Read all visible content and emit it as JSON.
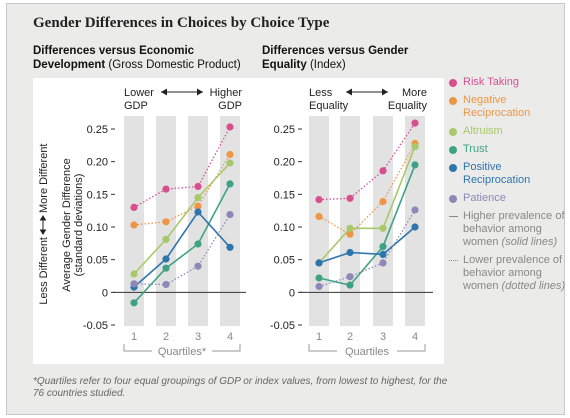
{
  "title": "Gender Differences in Choices by Choice Type",
  "chart_data": [
    {
      "type": "line",
      "title_bold": "Differences versus Economic Development",
      "title_rest": "(Gross Domestic Product)",
      "title_lines": [
        "Differences versus Economic",
        "Development"
      ],
      "top_left_label": [
        "Lower",
        "GDP"
      ],
      "top_right_label": [
        "Higher",
        "GDP"
      ],
      "x_title": "Quartiles*",
      "ylabel": "Average Gender Difference",
      "ylabel_sub": "(standard deviations)",
      "side_label": "Less Different ⟷ More Different",
      "side_low": "Less Different",
      "side_high": "More Different",
      "categories": [
        "1",
        "2",
        "3",
        "4"
      ],
      "ylim": [
        -0.05,
        0.25
      ],
      "yticks": [
        "0.25",
        "0.20",
        "0.15",
        "0.10",
        "0.05",
        "0",
        "-0.05"
      ],
      "series": [
        {
          "name": "Risk Taking",
          "color": "#d84f90",
          "style": "dotted",
          "values": [
            0.13,
            0.158,
            0.162,
            0.253
          ]
        },
        {
          "name": "Negative Reciprocation",
          "color": "#ee9646",
          "style": "dotted",
          "values": [
            0.103,
            0.108,
            0.132,
            0.211
          ]
        },
        {
          "name": "Altruism",
          "color": "#a8c96a",
          "style": "solid",
          "values": [
            0.028,
            0.081,
            0.145,
            0.198
          ]
        },
        {
          "name": "Trust",
          "color": "#3ea384",
          "style": "solid",
          "values": [
            -0.016,
            0.037,
            0.074,
            0.166
          ]
        },
        {
          "name": "Positive Reciprocation",
          "color": "#2e74ad",
          "style": "solid",
          "values": [
            0.008,
            0.051,
            0.123,
            0.069
          ]
        },
        {
          "name": "Patience",
          "color": "#8d88b7",
          "style": "dotted",
          "values": [
            0.013,
            0.012,
            0.04,
            0.119
          ]
        }
      ]
    },
    {
      "type": "line",
      "title_bold": "Differences versus Gender Equality",
      "title_rest": "(Index)",
      "title_lines": [
        "Differences versus Gender",
        "Equality"
      ],
      "top_left_label": [
        "Less",
        "Equality"
      ],
      "top_right_label": [
        "More",
        "Equality"
      ],
      "x_title": "Quartiles",
      "categories": [
        "1",
        "2",
        "3",
        "4"
      ],
      "ylim": [
        -0.05,
        0.25
      ],
      "yticks": [
        "0.25",
        "0.20",
        "0.15",
        "0.10",
        "0.05",
        "0",
        "-0.05"
      ],
      "series": [
        {
          "name": "Risk Taking",
          "color": "#d84f90",
          "style": "dotted",
          "values": [
            0.142,
            0.144,
            0.186,
            0.259
          ]
        },
        {
          "name": "Negative Reciprocation",
          "color": "#ee9646",
          "style": "dotted",
          "values": [
            0.116,
            0.089,
            0.139,
            0.228
          ]
        },
        {
          "name": "Altruism",
          "color": "#a8c96a",
          "style": "solid",
          "values": [
            0.045,
            0.098,
            0.098,
            0.223
          ]
        },
        {
          "name": "Trust",
          "color": "#3ea384",
          "style": "solid",
          "values": [
            0.022,
            0.011,
            0.07,
            0.195
          ]
        },
        {
          "name": "Positive Reciprocation",
          "color": "#2e74ad",
          "style": "solid",
          "values": [
            0.045,
            0.061,
            0.058,
            0.1
          ]
        },
        {
          "name": "Patience",
          "color": "#8d88b7",
          "style": "dotted",
          "values": [
            0.009,
            0.024,
            0.045,
            0.126
          ]
        }
      ]
    }
  ],
  "legend": {
    "items": [
      {
        "label": "Risk Taking",
        "color": "#d84f90"
      },
      {
        "label": "Negative Reciprocation",
        "color": "#ee9646"
      },
      {
        "label": "Altruism",
        "color": "#a8c96a"
      },
      {
        "label": "Trust",
        "color": "#3ea384"
      },
      {
        "label": "Positive Reciprocation",
        "color": "#2e74ad"
      },
      {
        "label": "Patience",
        "color": "#8d88b7"
      }
    ],
    "solid_note": "Higher prevalence of behavior among women",
    "solid_note_italic": "(solid lines)",
    "dotted_note": "Lower prevalence of behavior among women",
    "dotted_note_italic": "(dotted lines)"
  },
  "footnote": "*Quartiles refer to four equal groupings of GDP or index values, from lowest to highest, for the 76 countries studied."
}
